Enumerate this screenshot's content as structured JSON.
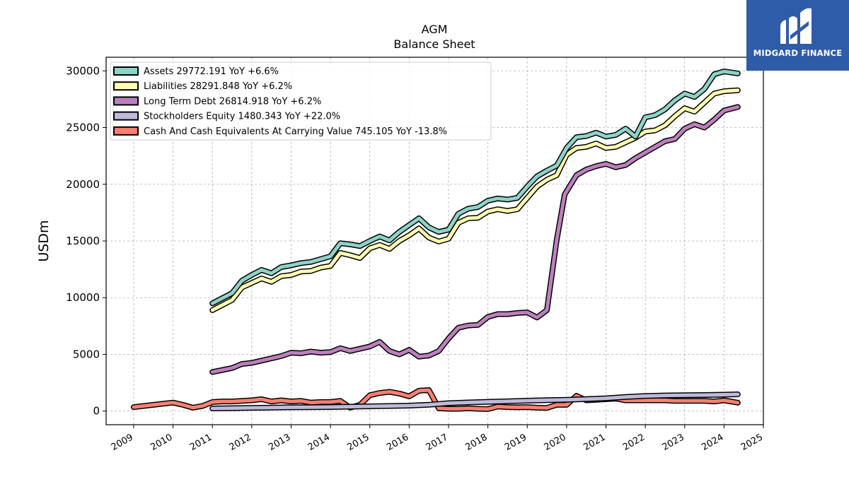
{
  "logo": {
    "brand": "MIDGARD FINANCE",
    "icon": "midgard-m-logo-icon"
  },
  "chart_data": {
    "type": "line",
    "title": "AGM",
    "subtitle": "Balance  Sheet",
    "xlabel": "",
    "ylabel": "USDm",
    "xlim": [
      2008.3,
      2025.0
    ],
    "ylim": [
      -1200,
      31200
    ],
    "yticks": [
      0,
      5000,
      10000,
      15000,
      20000,
      25000,
      30000
    ],
    "xticks": [
      "2009",
      "2010",
      "2011",
      "2012",
      "2013",
      "2014",
      "2015",
      "2016",
      "2017",
      "2018",
      "2019",
      "2020",
      "2021",
      "2022",
      "2023",
      "2024",
      "2025"
    ],
    "grid": true,
    "legend_position": "top-left",
    "series": [
      {
        "name": "Assets",
        "legend": "Assets  29772.191 YoY +6.6%",
        "color": "#8dd3c7",
        "x": [
          2011.0,
          2011.5,
          2011.75,
          2012.0,
          2012.25,
          2012.5,
          2012.75,
          2013.0,
          2013.25,
          2013.5,
          2013.75,
          2014.0,
          2014.25,
          2014.5,
          2014.75,
          2015.0,
          2015.25,
          2015.5,
          2015.75,
          2016.0,
          2016.25,
          2016.5,
          2016.75,
          2017.0,
          2017.25,
          2017.5,
          2017.75,
          2018.0,
          2018.25,
          2018.5,
          2018.75,
          2019.0,
          2019.25,
          2019.5,
          2019.75,
          2020.0,
          2020.25,
          2020.5,
          2020.75,
          2021.0,
          2021.25,
          2021.5,
          2021.75,
          2022.0,
          2022.25,
          2022.5,
          2022.75,
          2023.0,
          2023.25,
          2023.5,
          2023.75,
          2024.0,
          2024.35
        ],
        "y": [
          9500,
          10400,
          11500,
          12000,
          12450,
          12150,
          12700,
          12850,
          13050,
          13150,
          13400,
          13650,
          14800,
          14700,
          14550,
          15000,
          15400,
          15050,
          15800,
          16400,
          17000,
          16200,
          15800,
          16000,
          17400,
          17850,
          18000,
          18550,
          18750,
          18650,
          18800,
          19800,
          20700,
          21200,
          21650,
          23200,
          24150,
          24250,
          24550,
          24200,
          24350,
          24900,
          24200,
          25900,
          26100,
          26600,
          27400,
          28000,
          27700,
          28400,
          29700,
          29950,
          29772
        ]
      },
      {
        "name": "Liabilities",
        "legend": "Liabilities  28291.848 YoY +6.2%",
        "color": "#ffffb3",
        "x": [
          2011.0,
          2011.5,
          2011.75,
          2012.0,
          2012.25,
          2012.5,
          2012.75,
          2013.0,
          2013.25,
          2013.5,
          2013.75,
          2014.0,
          2014.25,
          2014.5,
          2014.75,
          2015.0,
          2015.25,
          2015.5,
          2015.75,
          2016.0,
          2016.25,
          2016.5,
          2016.75,
          2017.0,
          2017.25,
          2017.5,
          2017.75,
          2018.0,
          2018.25,
          2018.5,
          2018.75,
          2019.0,
          2019.25,
          2019.5,
          2019.75,
          2020.0,
          2020.25,
          2020.5,
          2020.75,
          2021.0,
          2021.25,
          2021.5,
          2021.75,
          2022.0,
          2022.25,
          2022.5,
          2022.75,
          2023.0,
          2023.25,
          2023.5,
          2023.75,
          2024.0,
          2024.35
        ],
        "y": [
          8900,
          9800,
          10900,
          11300,
          11700,
          11400,
          11900,
          12000,
          12300,
          12350,
          12650,
          12800,
          13950,
          13750,
          13500,
          14350,
          14650,
          14300,
          15000,
          15500,
          16100,
          15300,
          14950,
          15200,
          16600,
          17000,
          17050,
          17600,
          17800,
          17650,
          17800,
          18800,
          19800,
          20400,
          20800,
          22600,
          23200,
          23300,
          23600,
          23200,
          23300,
          23700,
          24100,
          24650,
          24750,
          25200,
          26000,
          26700,
          26400,
          27200,
          28000,
          28200,
          28292
        ]
      },
      {
        "name": "Long Term Debt",
        "legend": "Long Term Debt  26814.918 YoY +6.2%",
        "color": "#bc80bd",
        "x": [
          2011.0,
          2011.5,
          2011.75,
          2012.0,
          2012.25,
          2012.5,
          2012.75,
          2013.0,
          2013.25,
          2013.5,
          2013.75,
          2014.0,
          2014.25,
          2014.5,
          2014.75,
          2015.0,
          2015.25,
          2015.5,
          2015.75,
          2016.0,
          2016.25,
          2016.5,
          2016.75,
          2017.0,
          2017.25,
          2017.5,
          2017.75,
          2018.0,
          2018.25,
          2018.5,
          2018.75,
          2019.0,
          2019.25,
          2019.5,
          2019.75,
          2019.95,
          2020.25,
          2020.5,
          2020.75,
          2021.0,
          2021.25,
          2021.5,
          2021.75,
          2022.0,
          2022.25,
          2022.5,
          2022.75,
          2023.0,
          2023.25,
          2023.5,
          2023.75,
          2024.0,
          2024.35
        ],
        "y": [
          3450,
          3800,
          4150,
          4250,
          4450,
          4650,
          4850,
          5150,
          5100,
          5250,
          5150,
          5200,
          5550,
          5300,
          5500,
          5700,
          6100,
          5300,
          5000,
          5400,
          4800,
          4900,
          5300,
          6400,
          7350,
          7550,
          7600,
          8300,
          8550,
          8550,
          8650,
          8700,
          8250,
          8900,
          15100,
          19100,
          20800,
          21300,
          21600,
          21800,
          21500,
          21700,
          22300,
          22800,
          23300,
          23800,
          24000,
          24900,
          25300,
          25000,
          25700,
          26500,
          26815
        ]
      },
      {
        "name": "Stockholders Equity",
        "legend": "Stockholders Equity  1480.343 YoY +22.0%",
        "color": "#bebada",
        "x": [
          2011.0,
          2011.5,
          2012.0,
          2012.5,
          2013.0,
          2013.5,
          2014.0,
          2014.5,
          2015.0,
          2015.5,
          2016.0,
          2016.5,
          2017.0,
          2017.5,
          2018.0,
          2018.5,
          2019.0,
          2019.5,
          2020.0,
          2020.5,
          2021.0,
          2021.5,
          2022.0,
          2022.5,
          2023.0,
          2023.5,
          2024.0,
          2024.35
        ],
        "y": [
          230,
          260,
          290,
          310,
          330,
          340,
          360,
          390,
          420,
          450,
          480,
          560,
          700,
          760,
          820,
          860,
          920,
          960,
          1000,
          1060,
          1130,
          1250,
          1330,
          1380,
          1400,
          1420,
          1450,
          1480
        ]
      },
      {
        "name": "Cash And Cash Equivalents At Carrying Value",
        "legend": "Cash And Cash Equivalents At Carrying Value  745.105 YoY -13.8%",
        "color": "#fb8072",
        "x": [
          2009.0,
          2009.5,
          2010.0,
          2010.25,
          2010.5,
          2010.75,
          2011.0,
          2011.25,
          2011.5,
          2011.75,
          2012.0,
          2012.25,
          2012.5,
          2012.75,
          2013.0,
          2013.25,
          2013.5,
          2013.75,
          2014.0,
          2014.25,
          2014.5,
          2014.75,
          2015.0,
          2015.25,
          2015.5,
          2015.75,
          2016.0,
          2016.25,
          2016.5,
          2016.75,
          2017.0,
          2017.25,
          2017.5,
          2017.75,
          2018.0,
          2018.25,
          2018.5,
          2018.75,
          2019.0,
          2019.25,
          2019.5,
          2019.75,
          2020.0,
          2020.25,
          2020.5,
          2020.75,
          2021.0,
          2021.25,
          2021.5,
          2021.75,
          2022.0,
          2022.25,
          2022.5,
          2022.75,
          2023.0,
          2023.25,
          2023.5,
          2023.75,
          2024.0,
          2024.35
        ],
        "y": [
          350,
          550,
          750,
          550,
          300,
          450,
          800,
          850,
          850,
          900,
          950,
          1050,
          850,
          950,
          850,
          900,
          750,
          800,
          800,
          900,
          300,
          550,
          1400,
          1600,
          1700,
          1550,
          1300,
          1800,
          1850,
          250,
          200,
          200,
          250,
          200,
          180,
          400,
          350,
          330,
          350,
          300,
          280,
          550,
          550,
          1350,
          950,
          1000,
          1050,
          1100,
          950,
          950,
          950,
          950,
          950,
          900,
          900,
          900,
          900,
          850,
          950,
          745
        ]
      }
    ]
  }
}
